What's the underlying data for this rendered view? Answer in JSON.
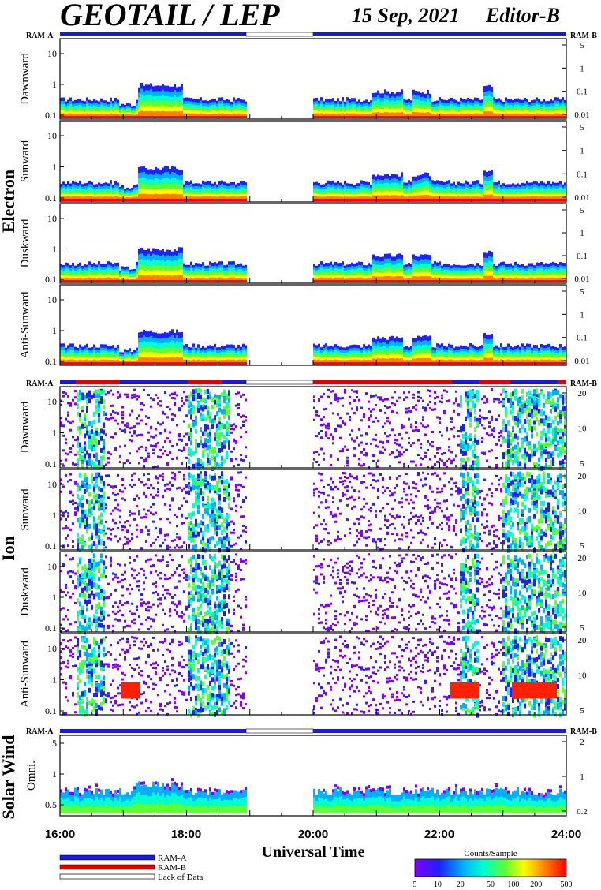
{
  "header": {
    "title": "GEOTAIL / LEP",
    "date": "15 Sep, 2021",
    "editor": "Editor-B"
  },
  "colors": {
    "ram_a": "#1a1ad8",
    "ram_b": "#e00000",
    "lack": "#ffffff"
  },
  "chart_data": {
    "type": "heatmap",
    "xlabel": "Universal Time",
    "xticks": [
      "16:00",
      "18:00",
      "20:00",
      "22:00",
      "24:00"
    ],
    "xlim": [
      "16:00",
      "24:00"
    ],
    "data_gap": [
      "18:55",
      "20:00"
    ],
    "groups": [
      {
        "name": "Electron",
        "ram_left": "RAM-A",
        "ram_right": "RAM-B",
        "panels": [
          {
            "label": "Dawnward",
            "yticks": [
              "0.1",
              "1",
              "10"
            ],
            "rticks": [
              "0.01",
              "0.1",
              "1",
              "5"
            ]
          },
          {
            "label": "Sunward",
            "yticks": [
              "0.1",
              "1",
              "10"
            ],
            "rticks": [
              "0.01",
              "0.1",
              "1",
              "5"
            ]
          },
          {
            "label": "Duskward",
            "yticks": [
              "0.1",
              "1",
              "10"
            ],
            "rticks": [
              "0.01",
              "0.1",
              "1",
              "5"
            ]
          },
          {
            "label": "Anti-Sunward",
            "yticks": [
              "0.1",
              "1",
              "10"
            ],
            "rticks": [
              "0.01",
              "0.1",
              "1",
              "5"
            ]
          }
        ]
      },
      {
        "name": "Ion",
        "ram_left": "RAM-A",
        "ram_right": "RAM-B",
        "panels": [
          {
            "label": "Dawnward",
            "yticks": [
              "0.1",
              "1",
              "10"
            ],
            "rticks": [
              "5",
              "10",
              "20"
            ]
          },
          {
            "label": "Sunward",
            "yticks": [
              "0.1",
              "1",
              "10"
            ],
            "rticks": [
              "5",
              "10",
              "20"
            ]
          },
          {
            "label": "Duskward",
            "yticks": [
              "0.1",
              "1",
              "10"
            ],
            "rticks": [
              "5",
              "10",
              "20"
            ]
          },
          {
            "label": "Anti-Sunward",
            "yticks": [
              "0.1",
              "1",
              "10"
            ],
            "rticks": [
              "5",
              "10",
              "20"
            ]
          }
        ]
      },
      {
        "name": "Solar Wind",
        "ram_left": "RAM-A",
        "ram_right": "RAM-B",
        "panels": [
          {
            "label": "Omni.",
            "yticks": [
              "0.5",
              "1",
              "5"
            ],
            "rticks": [
              "0.2",
              "1",
              "2"
            ]
          }
        ]
      }
    ],
    "legend": {
      "items": [
        "RAM-A",
        "RAM-B",
        "Lack of Data"
      ]
    },
    "colorbar": {
      "label": "Counts/Sample",
      "ticks": [
        "5",
        "10",
        "20",
        "50",
        "100",
        "200",
        "500"
      ],
      "colors": [
        "#8000ff",
        "#2020ff",
        "#00b0ff",
        "#00ffd0",
        "#60ff30",
        "#ffff00",
        "#ff8000",
        "#ff0000"
      ]
    }
  }
}
